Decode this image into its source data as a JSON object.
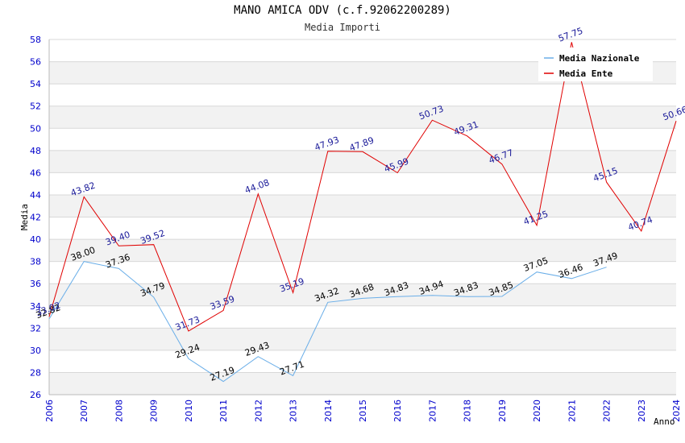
{
  "chart_data": {
    "type": "line",
    "title": "MANO AMICA ODV (c.f.92062200289)",
    "subtitle": "Media Importi",
    "xlabel": "Anno",
    "ylabel": "Media",
    "ylim": [
      26,
      58
    ],
    "yticks": [
      26,
      28,
      30,
      32,
      34,
      36,
      38,
      40,
      42,
      44,
      46,
      48,
      50,
      52,
      54,
      56,
      58
    ],
    "x": [
      "2006",
      "2007",
      "2008",
      "2009",
      "2010",
      "2011",
      "2012",
      "2013",
      "2014",
      "2015",
      "2016",
      "2017",
      "2018",
      "2019",
      "2020",
      "2021",
      "2022",
      "2023",
      "2024"
    ],
    "series": [
      {
        "name": "Media Nazionale",
        "color": "#6aaee8",
        "values": [
          32.82,
          38.0,
          37.36,
          34.79,
          29.24,
          27.19,
          29.43,
          27.71,
          34.32,
          34.68,
          34.83,
          34.94,
          34.83,
          34.85,
          37.05,
          36.46,
          37.49,
          null,
          null
        ],
        "labels": [
          "32.82",
          "38.00",
          "37.36",
          "34.79",
          "29.24",
          "27.19",
          "29.43",
          "27.71",
          "34.32",
          "34.68",
          "34.83",
          "34.94",
          "34.83",
          "34.85",
          "37.05",
          "36.46",
          "37.49",
          null,
          null
        ]
      },
      {
        "name": "Media Ente",
        "color": "#e00000",
        "values": [
          33.02,
          43.82,
          39.4,
          39.52,
          31.73,
          33.59,
          44.08,
          35.19,
          47.93,
          47.89,
          45.99,
          50.73,
          49.31,
          46.77,
          41.25,
          57.75,
          45.15,
          40.74,
          50.66
        ],
        "labels": [
          "33.02",
          "43.82",
          "39.40",
          "39.52",
          "31.73",
          "33.59",
          "44.08",
          "35.19",
          "47.93",
          "47.89",
          "45.99",
          "50.73",
          "49.31",
          "46.77",
          "41.25",
          "57.75",
          "45.15",
          "40.74",
          "50.66"
        ]
      }
    ],
    "legend": "top-right"
  }
}
